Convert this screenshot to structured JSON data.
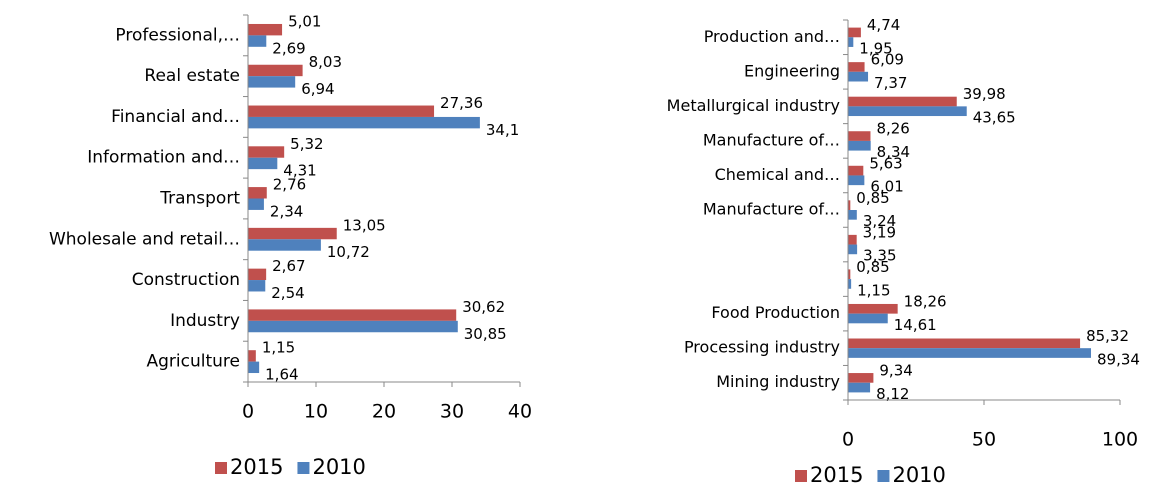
{
  "chart_data": [
    {
      "type": "bar",
      "orientation": "horizontal",
      "categories": [
        "Professional,…",
        "Real estate",
        "Financial and…",
        "Information and…",
        "Transport",
        "Wholesale and retail…",
        "Construction",
        "Industry",
        "Agriculture"
      ],
      "series": [
        {
          "name": "2015",
          "color": "#c0504d",
          "values": [
            5.01,
            8.03,
            27.36,
            5.32,
            2.76,
            13.05,
            2.67,
            30.62,
            1.15
          ],
          "value_labels": [
            "5,01",
            "8,03",
            "27,36",
            "5,32",
            "2,76",
            "13,05",
            "2,67",
            "30,62",
            "1,15"
          ]
        },
        {
          "name": "2010",
          "color": "#4f81bd",
          "values": [
            2.69,
            6.94,
            34.1,
            4.31,
            2.34,
            10.72,
            2.54,
            30.85,
            1.64
          ],
          "value_labels": [
            "2,69",
            "6,94",
            "34,1",
            "4,31",
            "2,34",
            "10,72",
            "2,54",
            "30,85",
            "1,64"
          ]
        }
      ],
      "xlim": [
        0,
        40
      ],
      "xticks": [
        0,
        10,
        20,
        30,
        40
      ],
      "legend": "bottom"
    },
    {
      "type": "bar",
      "orientation": "horizontal",
      "categories": [
        "Production and…",
        "Engineering",
        "Metallurgical industry",
        "Manufacture of…",
        "Chemical and…",
        "Manufacture of…",
        null,
        null,
        "Food Production",
        "Processing industry",
        "Mining industry"
      ],
      "series": [
        {
          "name": "2015",
          "color": "#c0504d",
          "values": [
            4.74,
            6.09,
            39.98,
            8.26,
            5.63,
            0.85,
            3.19,
            0.85,
            18.26,
            85.32,
            9.34
          ],
          "value_labels": [
            "4,74",
            "6,09",
            "39,98",
            "8,26",
            "5,63",
            "0,85",
            "3,19",
            "0,85",
            "18,26",
            "85,32",
            "9,34"
          ]
        },
        {
          "name": "2010",
          "color": "#4f81bd",
          "values": [
            1.95,
            7.37,
            43.65,
            8.34,
            6.01,
            3.24,
            3.35,
            1.15,
            14.61,
            89.34,
            8.12
          ],
          "value_labels": [
            "1,95",
            "7,37",
            "43,65",
            "8,34",
            "6,01",
            "3,24",
            "3,35",
            "1,15",
            "14,61",
            "89,34",
            "8,12"
          ]
        }
      ],
      "xlim": [
        0,
        100
      ],
      "xticks": [
        0,
        50,
        100
      ],
      "legend": "bottom"
    }
  ]
}
